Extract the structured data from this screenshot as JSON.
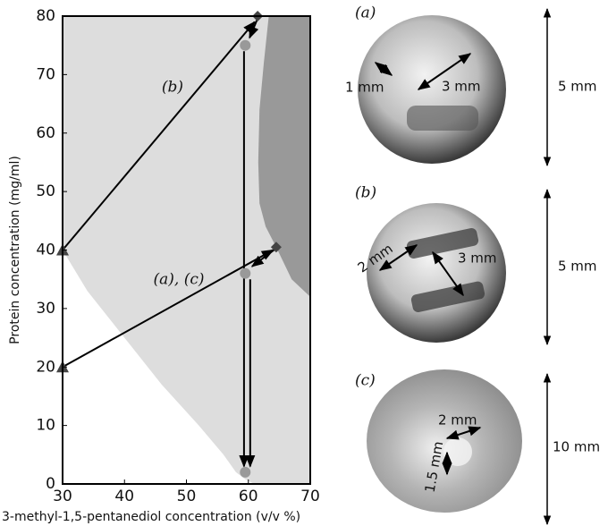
{
  "chart_data": {
    "type": "phase",
    "xlabel": "3-methyl-1,5-pentanediol concentration (v/v %)",
    "ylabel": "Protein concentration (mg/ml)",
    "xlim": [
      30,
      70
    ],
    "ylim": [
      0,
      80
    ],
    "xticks": [
      30,
      40,
      50,
      60,
      70
    ],
    "yticks": [
      0,
      10,
      20,
      30,
      40,
      50,
      60,
      70,
      80
    ],
    "annotations": [
      "(b)",
      "(a), (c)"
    ],
    "series": [
      {
        "kind": "region",
        "color": "#dddddd",
        "x": [
          30,
          30,
          34,
          40,
          46,
          52,
          56,
          58,
          59.5,
          61,
          70,
          70
        ],
        "y": [
          80,
          40,
          33,
          25,
          17,
          10,
          5,
          2,
          0.8,
          0,
          0,
          80
        ]
      },
      {
        "kind": "region",
        "color": "#999999",
        "x": [
          63.3,
          62.5,
          61.8,
          61.6,
          61.8,
          62.8,
          64.5,
          67,
          70,
          70
        ],
        "y": [
          80,
          72,
          64,
          55,
          48,
          44,
          40.5,
          35,
          32,
          80
        ]
      },
      {
        "kind": "arrow",
        "color": "#000000",
        "x": [
          30,
          61
        ],
        "y": [
          40,
          79
        ]
      },
      {
        "kind": "arrow",
        "color": "#000000",
        "x": [
          30,
          64
        ],
        "y": [
          20,
          40
        ]
      },
      {
        "kind": "arrow",
        "color": "#000000",
        "x": [
          61.5,
          60.2
        ],
        "y": [
          79.6,
          76.3
        ]
      },
      {
        "kind": "arrow",
        "color": "#000000",
        "x": [
          64.5,
          60.6
        ],
        "y": [
          40.3,
          37.2
        ]
      },
      {
        "kind": "arrow",
        "color": "#000000",
        "x": [
          59.3,
          59.3
        ],
        "y": [
          74,
          3
        ]
      },
      {
        "kind": "arrow",
        "color": "#000000",
        "x": [
          60.3,
          60.3
        ],
        "y": [
          35,
          3
        ]
      },
      {
        "kind": "triangle",
        "color": "#444444",
        "x": [
          30,
          30
        ],
        "y": [
          40,
          20
        ]
      },
      {
        "kind": "diamond",
        "color": "#444444",
        "x": [
          61.5,
          64.5
        ],
        "y": [
          80,
          40.5
        ]
      },
      {
        "kind": "circle",
        "color": "#999999",
        "x": [
          59.5,
          59.5,
          59.5
        ],
        "y": [
          75,
          36,
          2
        ]
      }
    ]
  },
  "panels": [
    {
      "label": "(a)",
      "dims": [
        "1 mm",
        "3 mm"
      ],
      "size": "5 mm"
    },
    {
      "label": "(b)",
      "dims": [
        "2 mm",
        "3 mm"
      ],
      "size": "5 mm"
    },
    {
      "label": "(c)",
      "dims": [
        "2 mm",
        "1.5 mm"
      ],
      "size": "10 mm"
    }
  ]
}
